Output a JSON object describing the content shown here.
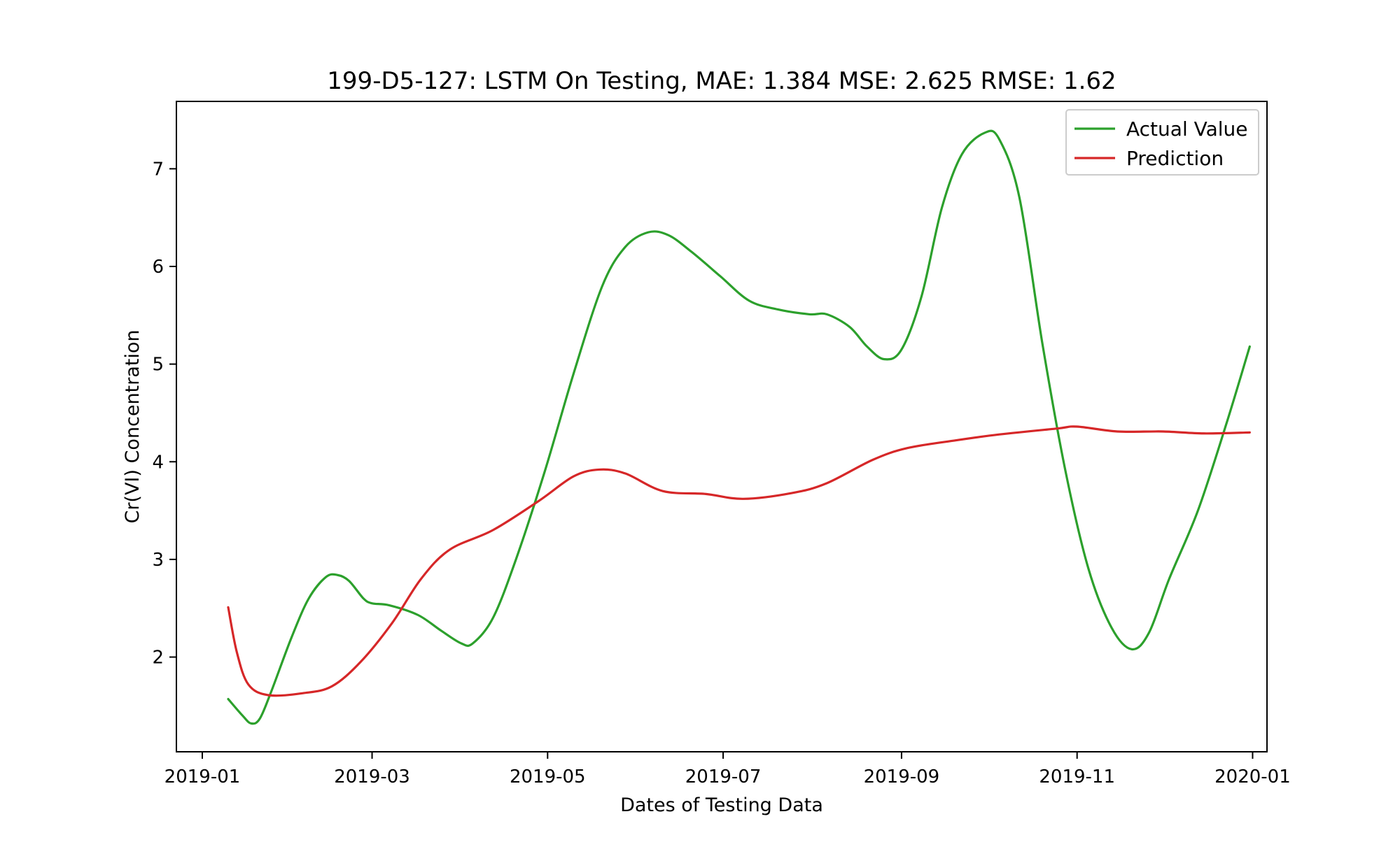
{
  "chart_data": {
    "type": "line",
    "title": "199-D5-127: LSTM On Testing, MAE: 1.384 MSE: 2.625 RMSE: 1.62",
    "xlabel": "Dates of Testing Data",
    "ylabel": "Cr(VI) Concentration",
    "x_ticks": [
      "2019-01",
      "2019-03",
      "2019-05",
      "2019-07",
      "2019-09",
      "2019-11",
      "2020-01"
    ],
    "x_tick_dates": [
      "2019-01-01",
      "2019-03-01",
      "2019-05-01",
      "2019-07-01",
      "2019-09-01",
      "2019-11-01",
      "2020-01-01"
    ],
    "y_ticks": [
      2,
      3,
      4,
      5,
      6,
      7
    ],
    "xlim": [
      "2018-12-23",
      "2020-01-06"
    ],
    "ylim": [
      1.03,
      7.69
    ],
    "grid": false,
    "legend_position": "top-right",
    "series": [
      {
        "name": "Actual Value",
        "color": "#2ca02c",
        "points": [
          [
            "2019-01-10",
            1.57
          ],
          [
            "2019-01-15",
            1.4
          ],
          [
            "2019-01-18",
            1.32
          ],
          [
            "2019-01-21",
            1.37
          ],
          [
            "2019-01-25",
            1.65
          ],
          [
            "2019-02-01",
            2.2
          ],
          [
            "2019-02-07",
            2.6
          ],
          [
            "2019-02-13",
            2.82
          ],
          [
            "2019-02-17",
            2.84
          ],
          [
            "2019-02-21",
            2.78
          ],
          [
            "2019-02-26",
            2.6
          ],
          [
            "2019-03-01",
            2.55
          ],
          [
            "2019-03-07",
            2.53
          ],
          [
            "2019-03-17",
            2.43
          ],
          [
            "2019-03-25",
            2.27
          ],
          [
            "2019-04-01",
            2.14
          ],
          [
            "2019-04-05",
            2.14
          ],
          [
            "2019-04-12",
            2.4
          ],
          [
            "2019-04-20",
            3.0
          ],
          [
            "2019-04-30",
            3.9
          ],
          [
            "2019-05-10",
            4.9
          ],
          [
            "2019-05-20",
            5.8
          ],
          [
            "2019-05-28",
            6.2
          ],
          [
            "2019-06-05",
            6.35
          ],
          [
            "2019-06-12",
            6.32
          ],
          [
            "2019-06-20",
            6.15
          ],
          [
            "2019-06-30",
            5.9
          ],
          [
            "2019-07-10",
            5.65
          ],
          [
            "2019-07-20",
            5.56
          ],
          [
            "2019-07-31",
            5.51
          ],
          [
            "2019-08-06",
            5.51
          ],
          [
            "2019-08-14",
            5.38
          ],
          [
            "2019-08-20",
            5.18
          ],
          [
            "2019-08-26",
            5.05
          ],
          [
            "2019-09-01",
            5.15
          ],
          [
            "2019-09-08",
            5.7
          ],
          [
            "2019-09-15",
            6.6
          ],
          [
            "2019-09-22",
            7.15
          ],
          [
            "2019-09-30",
            7.37
          ],
          [
            "2019-10-05",
            7.3
          ],
          [
            "2019-10-12",
            6.7
          ],
          [
            "2019-10-20",
            5.2
          ],
          [
            "2019-10-28",
            3.9
          ],
          [
            "2019-11-05",
            2.9
          ],
          [
            "2019-11-13",
            2.3
          ],
          [
            "2019-11-20",
            2.08
          ],
          [
            "2019-11-26",
            2.25
          ],
          [
            "2019-12-03",
            2.8
          ],
          [
            "2019-12-13",
            3.5
          ],
          [
            "2019-12-23",
            4.4
          ],
          [
            "2019-12-31",
            5.18
          ]
        ]
      },
      {
        "name": "Prediction",
        "color": "#d62728",
        "points": [
          [
            "2019-01-10",
            2.51
          ],
          [
            "2019-01-13",
            2.05
          ],
          [
            "2019-01-17",
            1.72
          ],
          [
            "2019-01-24",
            1.61
          ],
          [
            "2019-02-05",
            1.63
          ],
          [
            "2019-02-15",
            1.7
          ],
          [
            "2019-02-25",
            1.95
          ],
          [
            "2019-03-08",
            2.35
          ],
          [
            "2019-03-18",
            2.8
          ],
          [
            "2019-03-28",
            3.1
          ],
          [
            "2019-04-12",
            3.3
          ],
          [
            "2019-04-28",
            3.6
          ],
          [
            "2019-05-10",
            3.85
          ],
          [
            "2019-05-19",
            3.92
          ],
          [
            "2019-05-28",
            3.88
          ],
          [
            "2019-06-10",
            3.7
          ],
          [
            "2019-06-25",
            3.67
          ],
          [
            "2019-07-08",
            3.62
          ],
          [
            "2019-07-25",
            3.68
          ],
          [
            "2019-08-06",
            3.78
          ],
          [
            "2019-08-22",
            4.02
          ],
          [
            "2019-09-03",
            4.14
          ],
          [
            "2019-09-20",
            4.22
          ],
          [
            "2019-10-05",
            4.28
          ],
          [
            "2019-10-25",
            4.34
          ],
          [
            "2019-11-01",
            4.36
          ],
          [
            "2019-11-15",
            4.31
          ],
          [
            "2019-12-01",
            4.31
          ],
          [
            "2019-12-15",
            4.29
          ],
          [
            "2019-12-31",
            4.3
          ]
        ]
      }
    ]
  }
}
